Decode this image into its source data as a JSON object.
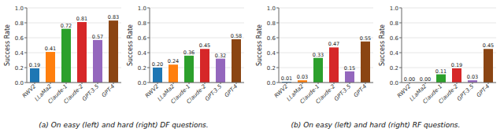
{
  "chart_data": [
    {
      "type": "bar",
      "ylabel": "Success Rate",
      "categories": [
        "RWV2",
        "LLaMa2",
        "Claude-1",
        "Claude-2",
        "GPT-3.5",
        "GPT-4"
      ],
      "values": [
        0.19,
        0.41,
        0.72,
        0.81,
        0.57,
        0.83
      ],
      "value_labels": [
        "0.19",
        "0.41",
        "0.72",
        "0.81",
        "0.57",
        "0.83"
      ],
      "colors": [
        "#1f77b4",
        "#ff7f0e",
        "#2ca02c",
        "#d62728",
        "#9467bd",
        "#8b4513"
      ],
      "ylim": [
        0.0,
        1.0
      ],
      "yticks": [
        {
          "value": 0.0,
          "label": "0.0"
        },
        0.2,
        0.4,
        0.6,
        0.8,
        {
          "value": 1.0,
          "label": "1.0"
        }
      ],
      "grid": true,
      "data_labels": true,
      "annotations": [
        "(a) On easy (left) and hard (right) DF questions."
      ]
    },
    {
      "type": "bar",
      "ylabel": "Success Rate",
      "categories": [
        "RWV2",
        "LLaMa2",
        "Claude-1",
        "Claude-2",
        "GPT-3.5",
        "GPT-4"
      ],
      "values": [
        0.2,
        0.24,
        0.36,
        0.45,
        0.32,
        0.58
      ],
      "value_labels": [
        "0.20",
        "0.24",
        "0.36",
        "0.45",
        "0.32",
        "0.58"
      ],
      "colors": [
        "#1f77b4",
        "#ff7f0e",
        "#2ca02c",
        "#d62728",
        "#9467bd",
        "#8b4513"
      ],
      "ylim": [
        0.0,
        1.0
      ],
      "yticks": [
        {
          "value": 0.0,
          "label": "0.0"
        },
        0.2,
        0.4,
        0.6,
        0.8,
        {
          "value": 1.0,
          "label": "1.0"
        }
      ],
      "grid": true,
      "data_labels": true
    },
    {
      "type": "bar",
      "ylabel": "Success Rate",
      "categories": [
        "RWV2",
        "LLaMa2",
        "Claude-1",
        "Claude-2",
        "GPT-3.5",
        "GPT-4"
      ],
      "values": [
        0.01,
        0.03,
        0.33,
        0.47,
        0.15,
        0.55
      ],
      "value_labels": [
        "0.01",
        "0.03",
        "0.33",
        "0.47",
        "0.15",
        "0.55"
      ],
      "colors": [
        "#1f77b4",
        "#ff7f0e",
        "#2ca02c",
        "#d62728",
        "#9467bd",
        "#8b4513"
      ],
      "ylim": [
        0.0,
        1.0
      ],
      "yticks": [
        {
          "value": 0.0,
          "label": "0.0"
        },
        0.2,
        0.4,
        0.6,
        0.8,
        {
          "value": 1.0,
          "label": "1.0"
        }
      ],
      "grid": true,
      "data_labels": true,
      "annotations": [
        "(b) On easy (left) and hard (right) RF questions."
      ]
    },
    {
      "type": "bar",
      "ylabel": "Success Rate",
      "categories": [
        "RWV2",
        "LLaMa2",
        "Claude-1",
        "Claude-2",
        "GPT-3.5",
        "GPT-4"
      ],
      "values": [
        0.0,
        0.0,
        0.11,
        0.19,
        0.03,
        0.45
      ],
      "value_labels": [
        "0.00",
        "0.00",
        "0.11",
        "0.19",
        "0.03",
        "0.45"
      ],
      "colors": [
        "#1f77b4",
        "#ff7f0e",
        "#2ca02c",
        "#d62728",
        "#9467bd",
        "#8b4513"
      ],
      "ylim": [
        0.0,
        1.0
      ],
      "yticks": [
        {
          "value": 0.0,
          "label": "0.0"
        },
        0.2,
        0.4,
        0.6,
        0.8,
        {
          "value": 1.0,
          "label": "1.0"
        }
      ],
      "grid": true,
      "data_labels": true
    }
  ]
}
